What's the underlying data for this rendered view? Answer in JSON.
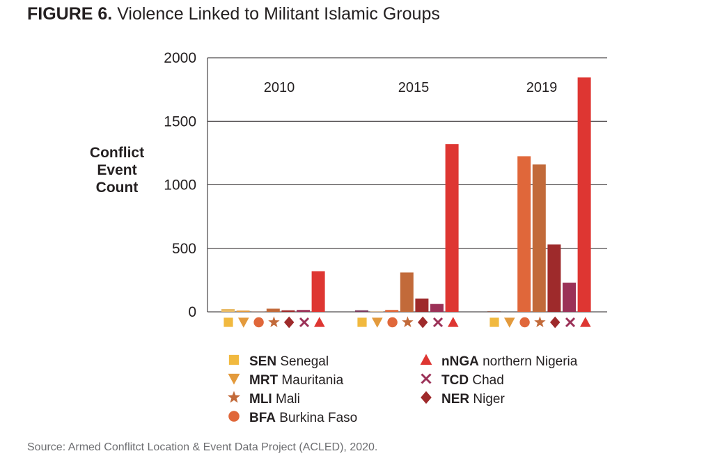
{
  "figure": {
    "title_lead": "FIGURE 6.",
    "title_rest": " Violence Linked to Militant Islamic Groups",
    "source_lead": "Source:",
    "source_rest": " Armed Conflitct Location & Event Data Project (ACLED), 2020."
  },
  "chart_data": {
    "type": "bar",
    "ylabel": [
      "Conflict",
      "Event",
      "Count"
    ],
    "ylim": [
      0,
      2000
    ],
    "yticks": [
      0,
      500,
      1000,
      1500,
      2000
    ],
    "grid": true,
    "legend_position": "bottom",
    "groups": [
      "2010",
      "2015",
      "2019"
    ],
    "series": [
      {
        "code": "SEN",
        "name": "Senegal",
        "marker": "square",
        "color": "#f1b93f",
        "values": [
          0,
          0,
          0
        ]
      },
      {
        "code": "MRT",
        "name": "Mauritania",
        "marker": "triangle-down",
        "color": "#e39a3c",
        "values": [
          10,
          2,
          0
        ]
      },
      {
        "code": "BFA",
        "name": "Burkina Faso",
        "marker": "circle",
        "color": "#e0673a",
        "values": [
          1,
          15,
          1225
        ]
      },
      {
        "code": "MLI",
        "name": "Mali",
        "marker": "star",
        "color": "#c26a3a",
        "values": [
          25,
          310,
          1160
        ]
      },
      {
        "code": "NER",
        "name": "Niger",
        "marker": "diamond",
        "color": "#9e2a2b",
        "values": [
          12,
          105,
          530
        ]
      },
      {
        "code": "TCD",
        "name": "Chad",
        "marker": "x",
        "color": "#9b3157",
        "values": [
          15,
          62,
          230
        ]
      },
      {
        "code": "nNGA",
        "name": "northern Nigeria",
        "marker": "triangle-up",
        "color": "#de3632",
        "values": [
          320,
          1320,
          1845
        ]
      }
    ],
    "extra_bars": [
      {
        "group": "2010",
        "slot": 0,
        "value": 22,
        "color": "#e8bb68"
      },
      {
        "group": "2015",
        "slot": 0,
        "value": 12,
        "color": "#7a3a5c"
      },
      {
        "group": "2019",
        "slot": 0,
        "value": 5,
        "color": "#8a5a4a"
      }
    ],
    "legend_columns": [
      [
        "SEN",
        "MRT",
        "MLI",
        "BFA"
      ],
      [
        "nNGA",
        "TCD",
        "NER"
      ]
    ]
  }
}
